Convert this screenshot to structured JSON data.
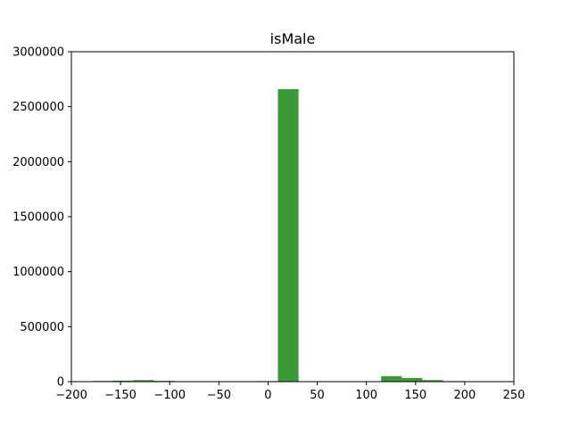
{
  "chart_data": {
    "type": "bar",
    "title": "isMale",
    "xlabel": "",
    "ylabel": "",
    "xlim": [
      -200,
      250
    ],
    "ylim": [
      0,
      3000000
    ],
    "xticks": [
      "-200",
      "-150",
      "-100",
      "-50",
      "0",
      "50",
      "100",
      "150",
      "200",
      "250"
    ],
    "yticks": [
      "0",
      "500000",
      "1000000",
      "1500000",
      "2000000",
      "2500000",
      "3000000"
    ],
    "grid": false,
    "bin_edges": [
      -179,
      -158,
      -137,
      -116,
      -95,
      -74,
      -53,
      -32,
      -11,
      10,
      31,
      52,
      73,
      94,
      115,
      136,
      157,
      178,
      199,
      220
    ],
    "values": [
      6000,
      9000,
      14000,
      7000,
      1000,
      500,
      500,
      500,
      5000,
      2660000,
      2000,
      500,
      500,
      500,
      50000,
      33000,
      14000,
      5000,
      1000
    ],
    "bar_color": "#3a9a36"
  }
}
